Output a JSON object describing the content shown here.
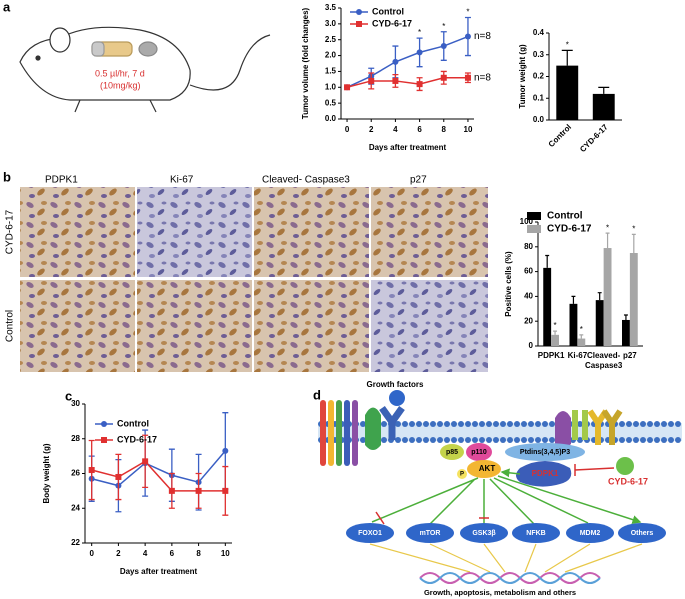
{
  "panel_labels": [
    "a",
    "b",
    "c",
    "d"
  ],
  "mouse_annotation": [
    "0.5 µl/hr, 7 d",
    "(10mg/kg)"
  ],
  "ihc": {
    "columns": [
      "PDPK1",
      "Ki-67",
      "Cleaved- Caspase3",
      "p27"
    ],
    "rows": [
      "CYD-6-17",
      "Control"
    ]
  },
  "diagram": {
    "growth_factors": "Growth factors",
    "p85": "p85",
    "p110": "p110",
    "pip3": "Ptdins(3,4,5)P3",
    "akt": "AKT",
    "p": "P",
    "pdpk1": "PDPK1",
    "inhibitor": "CYD-6-17",
    "targets": [
      "FOXO1",
      "mTOR",
      "GSK3β",
      "NFKB",
      "MDM2",
      "Others"
    ],
    "outcome": "Growth, apoptosis, metabolism and others"
  },
  "chart_data": [
    {
      "type": "line",
      "y_label": "Tumor volume (fold changes)",
      "x_label": "Days after treatment",
      "x": [
        0,
        2,
        4,
        6,
        8,
        10
      ],
      "xlim": [
        -0.5,
        10.5
      ],
      "xticks": [
        0,
        2,
        4,
        6,
        8,
        10
      ],
      "ylim": [
        0,
        3.5
      ],
      "yticks": [
        {
          "value": 0,
          "label": "0.0"
        },
        0.5,
        {
          "value": 1,
          "label": "1.0"
        },
        1.5,
        {
          "value": 2,
          "label": "2.0"
        },
        2.5,
        {
          "value": 3,
          "label": "3.0"
        },
        3.5
      ],
      "series": [
        {
          "name": "Control",
          "color": "#3a5fc4",
          "marker": "circle",
          "values": [
            1,
            1.35,
            1.8,
            2.1,
            2.3,
            2.6
          ],
          "errors": [
            0,
            0.25,
            0.5,
            0.45,
            0.45,
            0.6
          ],
          "significance": [
            null,
            null,
            null,
            "*",
            "*",
            "*"
          ],
          "n_label": "n=8"
        },
        {
          "name": "CYD-6-17",
          "color": "#e03030",
          "marker": "square",
          "values": [
            1,
            1.2,
            1.2,
            1.1,
            1.3,
            1.3
          ],
          "errors": [
            0,
            0.25,
            0.2,
            0.2,
            0.2,
            0.15
          ],
          "n_label": "n=8"
        }
      ]
    },
    {
      "type": "bar",
      "y_label": "Tumor weight (g)",
      "categories": [
        "Control",
        "CYD-6-17"
      ],
      "values": [
        0.25,
        0.12
      ],
      "errors": [
        0.07,
        0.03
      ],
      "significance": [
        "*",
        null
      ],
      "color": "#000000",
      "ylim": [
        0,
        0.4
      ],
      "yticks": [
        {
          "value": 0,
          "label": "0.0"
        },
        0.1,
        0.2,
        0.3,
        0.4
      ]
    },
    {
      "type": "bar",
      "y_label": "Positive cells (%)",
      "categories": [
        "PDPK1",
        "Ki-67",
        "Cleaved- Caspase3",
        "p27"
      ],
      "ylim": [
        0,
        100
      ],
      "yticks": [
        0,
        20,
        40,
        60,
        80,
        100
      ],
      "series": [
        {
          "name": "Control",
          "color": "#000000",
          "values": [
            63,
            34,
            37,
            21
          ],
          "errors": [
            10,
            6,
            6,
            4
          ]
        },
        {
          "name": "CYD-6-17",
          "color": "#a6a6a6",
          "values": [
            9,
            6,
            79,
            75
          ],
          "errors": [
            3,
            3,
            12,
            15
          ],
          "significance": [
            "*",
            "*",
            "*",
            "*"
          ]
        }
      ]
    },
    {
      "type": "line",
      "y_label": "Body weight (g)",
      "x_label": "Days after treatment",
      "x": [
        0,
        2,
        4,
        6,
        8,
        10
      ],
      "xlim": [
        -0.5,
        10.5
      ],
      "xticks": [
        0,
        2,
        4,
        6,
        8,
        10
      ],
      "ylim": [
        22,
        30
      ],
      "yticks": [
        22,
        24,
        26,
        28,
        30
      ],
      "series": [
        {
          "name": "Control",
          "color": "#3a5fc4",
          "marker": "circle",
          "values": [
            25.7,
            25.3,
            26.6,
            25.9,
            25.5,
            27.3
          ],
          "errors": [
            1.3,
            1.5,
            1.9,
            1.5,
            1.6,
            2.2
          ]
        },
        {
          "name": "CYD-6-17",
          "color": "#e03030",
          "marker": "square",
          "values": [
            26.2,
            25.8,
            26.7,
            25.0,
            25.0,
            25.0
          ],
          "errors": [
            1.7,
            1.3,
            1.5,
            1.0,
            1.0,
            1.4
          ]
        }
      ]
    }
  ]
}
